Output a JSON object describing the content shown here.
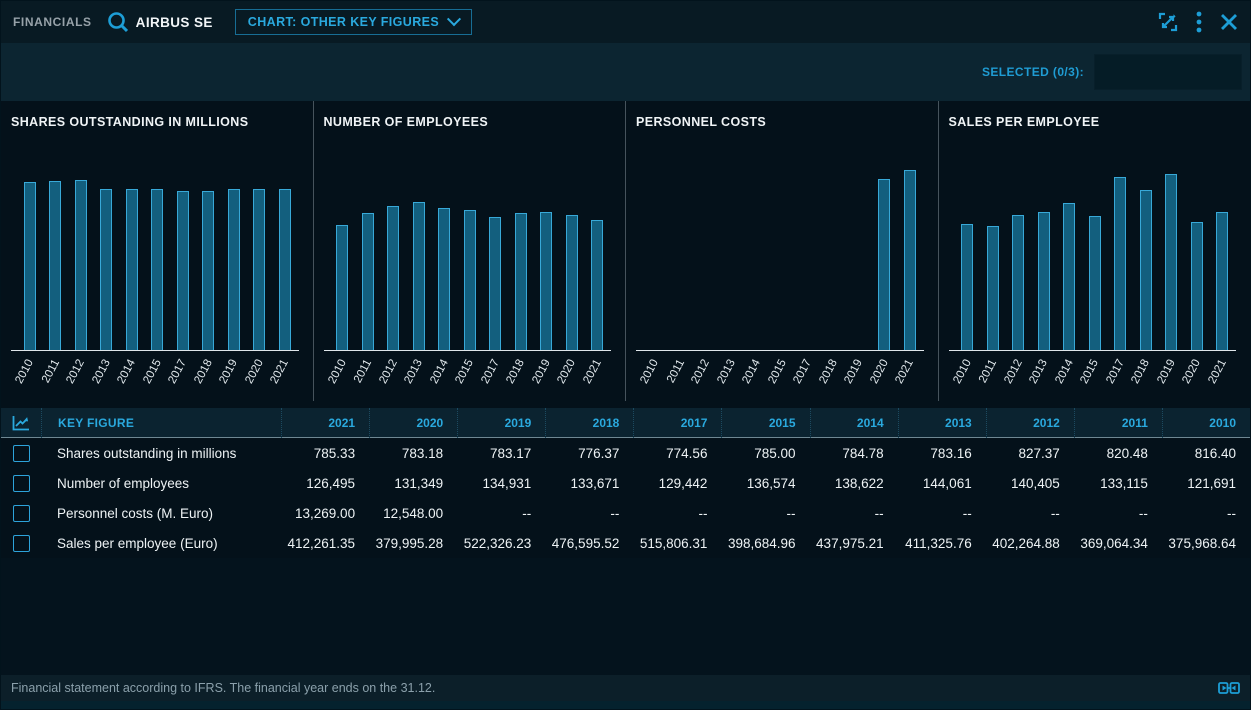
{
  "header": {
    "app_label": "FINANCIALS",
    "company": "AIRBUS SE",
    "chart_selector_label": "CHART: OTHER KEY FIGURES",
    "icons": [
      "search-icon",
      "expand-icon",
      "kebab-menu-icon",
      "close-icon"
    ]
  },
  "selection_bar": {
    "selected_label": "SELECTED (0/3):"
  },
  "colors": {
    "accent_cyan": "#2aa9de",
    "bar_fill": "#135f7e",
    "bar_border": "#38a9d8",
    "background": "#04111a",
    "selection_bar_bg": "#0c2531",
    "table_header_bg": "#0b2330"
  },
  "chart_data": [
    {
      "type": "bar",
      "title": "SHARES OUTSTANDING IN MILLIONS",
      "categories": [
        "2010",
        "2011",
        "2012",
        "2013",
        "2014",
        "2015",
        "2017",
        "2018",
        "2019",
        "2020",
        "2021"
      ],
      "values": [
        816.4,
        820.48,
        827.37,
        783.16,
        784.78,
        785.0,
        774.56,
        776.37,
        783.17,
        783.18,
        785.33
      ],
      "xlabel": "",
      "ylabel": "",
      "ylim": [
        0,
        900
      ],
      "grid": false,
      "legend": "none"
    },
    {
      "type": "bar",
      "title": "NUMBER OF EMPLOYEES",
      "categories": [
        "2010",
        "2011",
        "2012",
        "2013",
        "2014",
        "2015",
        "2017",
        "2018",
        "2019",
        "2020",
        "2021"
      ],
      "values": [
        121691,
        133115,
        140405,
        144061,
        138622,
        136574,
        129442,
        133671,
        134931,
        131349,
        126495
      ],
      "xlabel": "",
      "ylabel": "",
      "ylim": [
        0,
        180000
      ],
      "grid": false,
      "legend": "none"
    },
    {
      "type": "bar",
      "title": "PERSONNEL COSTS",
      "categories": [
        "2010",
        "2011",
        "2012",
        "2013",
        "2014",
        "2015",
        "2017",
        "2018",
        "2019",
        "2020",
        "2021"
      ],
      "values": [
        null,
        null,
        null,
        null,
        null,
        null,
        null,
        null,
        null,
        12548.0,
        13269.0
      ],
      "xlabel": "",
      "ylabel": "",
      "ylim": [
        0,
        13600
      ],
      "grid": false,
      "legend": "none"
    },
    {
      "type": "bar",
      "title": "SALES PER EMPLOYEE",
      "categories": [
        "2010",
        "2011",
        "2012",
        "2013",
        "2014",
        "2015",
        "2017",
        "2018",
        "2019",
        "2020",
        "2021"
      ],
      "values": [
        375968.64,
        369064.34,
        402264.88,
        411325.76,
        437975.21,
        398684.96,
        515806.31,
        476595.52,
        522326.23,
        379995.28,
        412261.35
      ],
      "xlabel": "",
      "ylabel": "",
      "ylim": [
        0,
        550000
      ],
      "grid": false,
      "legend": "none"
    }
  ],
  "table": {
    "key_figure_header": "KEY FIGURE",
    "years": [
      "2021",
      "2020",
      "2019",
      "2018",
      "2017",
      "2015",
      "2014",
      "2013",
      "2012",
      "2011",
      "2010"
    ],
    "rows": [
      {
        "label": "Shares outstanding in millions",
        "values": [
          "785.33",
          "783.18",
          "783.17",
          "776.37",
          "774.56",
          "785.00",
          "784.78",
          "783.16",
          "827.37",
          "820.48",
          "816.40"
        ]
      },
      {
        "label": "Number of employees",
        "values": [
          "126,495",
          "131,349",
          "134,931",
          "133,671",
          "129,442",
          "136,574",
          "138,622",
          "144,061",
          "140,405",
          "133,115",
          "121,691"
        ]
      },
      {
        "label": "Personnel costs (M. Euro)",
        "values": [
          "13,269.00",
          "12,548.00",
          "--",
          "--",
          "--",
          "--",
          "--",
          "--",
          "--",
          "--",
          "--"
        ]
      },
      {
        "label": "Sales per employee (Euro)",
        "values": [
          "412,261.35",
          "379,995.28",
          "522,326.23",
          "476,595.52",
          "515,806.31",
          "398,684.96",
          "437,975.21",
          "411,325.76",
          "402,264.88",
          "369,064.34",
          "375,968.64"
        ]
      }
    ]
  },
  "footer": {
    "note": "Financial statement according to IFRS. The financial year ends on the 31.12.",
    "icon": "link-icon"
  }
}
